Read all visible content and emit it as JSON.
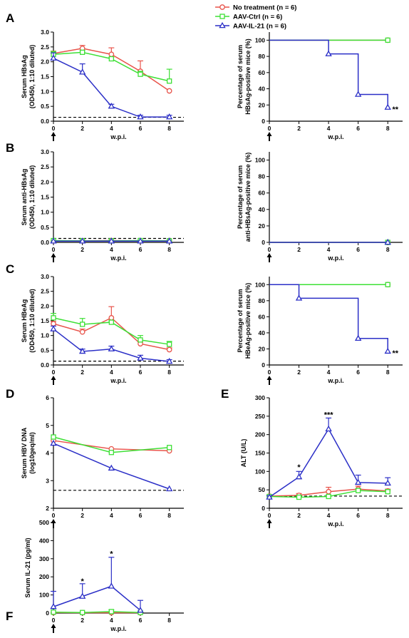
{
  "legend": {
    "no_treatment": "No treatment (n = 6)",
    "aav_ctrl": "AAV-Ctrl (n = 6)",
    "aav_il21": "AAV-IL-21 (n = 6)"
  },
  "colors": {
    "no_treatment": "#e8534a",
    "aav_ctrl": "#3ee036",
    "aav_il21": "#2b2fc7"
  },
  "chart_data": [
    {
      "id": "A_left",
      "panel_label": "A",
      "type": "line",
      "xlabel": "w.p.i.",
      "ylabel_lines": [
        "Serum HBsAg",
        "(OD450, 1:10 diluted)"
      ],
      "ylim": [
        0,
        3.0
      ],
      "yticks": [
        0,
        0.5,
        1.0,
        1.5,
        2.0,
        2.5,
        3.0
      ],
      "ytick_labels": [
        "0.0",
        "0.5",
        "1.0",
        "1.5",
        "2.0",
        "2.5",
        "3.0"
      ],
      "xlim": [
        0,
        9
      ],
      "xticks": [
        0,
        2,
        4,
        6,
        8
      ],
      "arrow_at_zero": true,
      "baseline": 0.13,
      "series": [
        {
          "name": "No treatment (n = 6)",
          "key": "no_treatment",
          "marker": "circle",
          "x": [
            0,
            2,
            4,
            6,
            8
          ],
          "y": [
            2.28,
            2.45,
            2.25,
            1.68,
            1.02
          ],
          "err": [
            0.08,
            0.1,
            0.22,
            0.35,
            0.0
          ]
        },
        {
          "name": "AAV-Ctrl (n = 6)",
          "key": "aav_ctrl",
          "marker": "square",
          "x": [
            0,
            2,
            4,
            6,
            8
          ],
          "y": [
            2.25,
            2.32,
            2.1,
            1.58,
            1.35
          ],
          "err": [
            0.1,
            0.05,
            0.05,
            0.1,
            0.4
          ]
        },
        {
          "name": "AAV-IL-21 (n = 6)",
          "key": "aav_il21",
          "marker": "triangle",
          "x": [
            0,
            2,
            4,
            6,
            8
          ],
          "y": [
            2.12,
            1.65,
            0.5,
            0.14,
            0.14
          ],
          "err": [
            0.18,
            0.28,
            0.07,
            0.06,
            0.06
          ]
        }
      ],
      "annotations": []
    },
    {
      "id": "A_right",
      "type": "step",
      "xlabel": "w.p.i.",
      "ylabel_lines": [
        "Percentage of serum",
        "HBsAg-positive mice (%)"
      ],
      "ylim": [
        0,
        110
      ],
      "yticks": [
        0,
        20,
        40,
        60,
        80,
        100
      ],
      "ytick_labels": [
        "0",
        "20",
        "40",
        "60",
        "80",
        "100"
      ],
      "xlim": [
        0,
        9
      ],
      "xticks": [
        0,
        2,
        4,
        6,
        8
      ],
      "arrow_at_zero": true,
      "series": [
        {
          "name": "No treatment (n = 6)",
          "key": "no_treatment",
          "marker": "circle",
          "x": [
            0,
            8
          ],
          "y": [
            100,
            100
          ]
        },
        {
          "name": "AAV-Ctrl (n = 6)",
          "key": "aav_ctrl",
          "marker": "square",
          "x": [
            0,
            8
          ],
          "y": [
            100,
            100
          ]
        },
        {
          "name": "AAV-IL-21 (n = 6)",
          "key": "aav_il21",
          "marker": "triangle",
          "x": [
            0,
            4,
            6,
            8
          ],
          "y": [
            100,
            83,
            33,
            17
          ]
        }
      ],
      "annotations": [
        {
          "text": "**",
          "x": 8.3,
          "y": 15
        }
      ]
    },
    {
      "id": "B_left",
      "panel_label": "B",
      "type": "line",
      "xlabel": "w.p.i.",
      "ylabel_lines": [
        "Serum anti-HBsAg",
        "(OD450, 1:10 diluted)"
      ],
      "ylim": [
        0,
        3.0
      ],
      "yticks": [
        0,
        0.5,
        1.0,
        1.5,
        2.0,
        2.5,
        3.0
      ],
      "ytick_labels": [
        "0.0",
        "0.5",
        "1.0",
        "1.5",
        "2.0",
        "2.5",
        "3.0"
      ],
      "xlim": [
        0,
        9
      ],
      "xticks": [
        0,
        2,
        4,
        6,
        8
      ],
      "arrow_at_zero": true,
      "baseline": 0.13,
      "series": [
        {
          "name": "No treatment (n = 6)",
          "key": "no_treatment",
          "marker": "circle",
          "x": [
            0,
            2,
            4,
            6,
            8
          ],
          "y": [
            0.05,
            0.05,
            0.06,
            0.05,
            0.05
          ],
          "err": [
            0,
            0,
            0,
            0,
            0
          ]
        },
        {
          "name": "AAV-Ctrl (n = 6)",
          "key": "aav_ctrl",
          "marker": "square",
          "x": [
            0,
            2,
            4,
            6,
            8
          ],
          "y": [
            0.06,
            0.05,
            0.05,
            0.06,
            0.05
          ],
          "err": [
            0,
            0,
            0,
            0,
            0
          ]
        },
        {
          "name": "AAV-IL-21 (n = 6)",
          "key": "aav_il21",
          "marker": "triangle",
          "x": [
            0,
            2,
            4,
            6,
            8
          ],
          "y": [
            0.04,
            0.04,
            0.04,
            0.04,
            0.04
          ],
          "err": [
            0,
            0,
            0,
            0,
            0
          ]
        }
      ],
      "annotations": []
    },
    {
      "id": "B_right",
      "type": "step",
      "xlabel": "w.p.i.",
      "ylabel_lines": [
        "Percentage of serum",
        "anti-HBsAg-positive mice (%)"
      ],
      "ylim": [
        0,
        110
      ],
      "yticks": [
        0,
        20,
        40,
        60,
        80,
        100
      ],
      "ytick_labels": [
        "0",
        "20",
        "40",
        "60",
        "80",
        "100"
      ],
      "xlim": [
        0,
        9
      ],
      "xticks": [
        0,
        2,
        4,
        6,
        8
      ],
      "arrow_at_zero": true,
      "series": [
        {
          "name": "No treatment (n = 6)",
          "key": "no_treatment",
          "marker": "circle",
          "x": [
            0,
            8
          ],
          "y": [
            0,
            0
          ]
        },
        {
          "name": "AAV-Ctrl (n = 6)",
          "key": "aav_ctrl",
          "marker": "square",
          "x": [
            0,
            8
          ],
          "y": [
            0,
            0
          ]
        },
        {
          "name": "AAV-IL-21 (n = 6)",
          "key": "aav_il21",
          "marker": "triangle",
          "x": [
            0,
            8
          ],
          "y": [
            0,
            0
          ]
        }
      ],
      "annotations": []
    },
    {
      "id": "C_left",
      "panel_label": "C",
      "type": "line",
      "xlabel": "w.p.i.",
      "ylabel_lines": [
        "Serum HBeAg",
        "(OD450, 1:10 diluted)"
      ],
      "ylim": [
        0,
        3.0
      ],
      "yticks": [
        0,
        0.5,
        1.0,
        1.5,
        2.0,
        2.5,
        3.0
      ],
      "ytick_labels": [
        "0.0",
        "0.5",
        "1.0",
        "1.5",
        "2.0",
        "2.5",
        "3.0"
      ],
      "xlim": [
        0,
        9
      ],
      "xticks": [
        0,
        2,
        4,
        6,
        8
      ],
      "arrow_at_zero": true,
      "baseline": 0.13,
      "series": [
        {
          "name": "No treatment (n = 6)",
          "key": "no_treatment",
          "marker": "circle",
          "x": [
            0,
            2,
            4,
            6,
            8
          ],
          "y": [
            1.4,
            1.12,
            1.6,
            0.72,
            0.52
          ],
          "err": [
            0.08,
            0.1,
            0.38,
            0.06,
            0.06
          ]
        },
        {
          "name": "AAV-Ctrl (n = 6)",
          "key": "aav_ctrl",
          "marker": "square",
          "x": [
            0,
            2,
            4,
            6,
            8
          ],
          "y": [
            1.6,
            1.38,
            1.45,
            0.85,
            0.7
          ],
          "err": [
            0.15,
            0.2,
            0.05,
            0.15,
            0.1
          ]
        },
        {
          "name": "AAV-IL-21 (n = 6)",
          "key": "aav_il21",
          "marker": "triangle",
          "x": [
            0,
            2,
            4,
            6,
            8
          ],
          "y": [
            1.22,
            0.46,
            0.54,
            0.23,
            0.12
          ],
          "err": [
            0.1,
            0.08,
            0.1,
            0.1,
            0.06
          ]
        }
      ],
      "annotations": []
    },
    {
      "id": "C_right",
      "type": "step",
      "xlabel": "w.p.i.",
      "ylabel_lines": [
        "Percentage of serum",
        "HBeAg-positive mice (%)"
      ],
      "ylim": [
        0,
        110
      ],
      "yticks": [
        0,
        20,
        40,
        60,
        80,
        100
      ],
      "ytick_labels": [
        "0",
        "20",
        "40",
        "60",
        "80",
        "100"
      ],
      "xlim": [
        0,
        9
      ],
      "xticks": [
        0,
        2,
        4,
        6,
        8
      ],
      "arrow_at_zero": true,
      "series": [
        {
          "name": "No treatment (n = 6)",
          "key": "no_treatment",
          "marker": "circle",
          "x": [
            0,
            8
          ],
          "y": [
            100,
            100
          ]
        },
        {
          "name": "AAV-Ctrl (n = 6)",
          "key": "aav_ctrl",
          "marker": "square",
          "x": [
            0,
            8
          ],
          "y": [
            100,
            100
          ]
        },
        {
          "name": "AAV-IL-21 (n = 6)",
          "key": "aav_il21",
          "marker": "triangle",
          "x": [
            0,
            2,
            6,
            8
          ],
          "y": [
            100,
            83,
            33,
            17
          ]
        }
      ],
      "annotations": [
        {
          "text": "**",
          "x": 8.3,
          "y": 15
        }
      ]
    },
    {
      "id": "D",
      "panel_label": "D",
      "type": "line",
      "xlabel": "",
      "ylabel_lines": [
        "Serum HBV DNA",
        "(log10geq/ml)"
      ],
      "ylim": [
        2,
        6
      ],
      "yticks": [
        2,
        3,
        4,
        5,
        6
      ],
      "ytick_labels": [
        "2",
        "3",
        "4",
        "5",
        "6"
      ],
      "xlim": [
        0,
        9
      ],
      "xticks": [
        0,
        2,
        4,
        6,
        8
      ],
      "arrow_at_zero": true,
      "baseline": 2.65,
      "series": [
        {
          "name": "No treatment (n = 6)",
          "key": "no_treatment",
          "marker": "circle",
          "x": [
            0,
            4,
            8
          ],
          "y": [
            4.45,
            4.15,
            4.08
          ],
          "err": [
            0,
            0,
            0
          ]
        },
        {
          "name": "AAV-Ctrl (n = 6)",
          "key": "aav_ctrl",
          "marker": "square",
          "x": [
            0,
            4,
            8
          ],
          "y": [
            4.58,
            4.02,
            4.2
          ],
          "err": [
            0,
            0,
            0
          ]
        },
        {
          "name": "AAV-IL-21 (n = 6)",
          "key": "aav_il21",
          "marker": "triangle",
          "x": [
            0,
            4,
            8
          ],
          "y": [
            4.35,
            3.45,
            2.7
          ],
          "err": [
            0,
            0,
            0
          ]
        }
      ],
      "annotations": []
    },
    {
      "id": "E",
      "panel_label": "E",
      "type": "line",
      "xlabel": "w.p.i.",
      "ylabel_lines": [
        "ALT (U/L)"
      ],
      "ylim": [
        0,
        300
      ],
      "yticks": [
        0,
        50,
        100,
        150,
        200,
        250,
        300
      ],
      "ytick_labels": [
        "0",
        "50",
        "100",
        "150",
        "200",
        "250",
        "300"
      ],
      "xlim": [
        0,
        9
      ],
      "xticks": [
        0,
        2,
        4,
        6,
        8
      ],
      "arrow_at_zero": true,
      "baseline": 33,
      "series": [
        {
          "name": "No treatment (n = 6)",
          "key": "no_treatment",
          "marker": "circle",
          "x": [
            0,
            2,
            4,
            6,
            8
          ],
          "y": [
            33,
            35,
            45,
            52,
            47
          ],
          "err": [
            3,
            5,
            12,
            8,
            5
          ]
        },
        {
          "name": "AAV-Ctrl (n = 6)",
          "key": "aav_ctrl",
          "marker": "square",
          "x": [
            0,
            2,
            4,
            6,
            8
          ],
          "y": [
            32,
            30,
            32,
            48,
            45
          ],
          "err": [
            3,
            3,
            3,
            5,
            5
          ]
        },
        {
          "name": "AAV-IL-21 (n = 6)",
          "key": "aav_il21",
          "marker": "triangle",
          "x": [
            0,
            2,
            4,
            6,
            8
          ],
          "y": [
            30,
            85,
            215,
            70,
            68
          ],
          "err": [
            4,
            15,
            30,
            20,
            15
          ]
        }
      ],
      "annotations": [
        {
          "text": "*",
          "x": 2,
          "y": 112
        },
        {
          "text": "***",
          "x": 4,
          "y": 255
        }
      ]
    },
    {
      "id": "F",
      "panel_label": "F",
      "type": "line",
      "xlabel": "w.p.i.",
      "ylabel_lines": [
        "Serum IL-21 (pg/ml)"
      ],
      "ylim": [
        0,
        500
      ],
      "yticks": [
        0,
        100,
        200,
        300,
        400,
        500
      ],
      "ytick_labels": [
        "0",
        "100",
        "200",
        "300",
        "400",
        "500"
      ],
      "xlim": [
        0,
        9
      ],
      "xticks": [
        0,
        2,
        4,
        6,
        8
      ],
      "arrow_at_zero": true,
      "series": [
        {
          "name": "No treatment (n = 6)",
          "key": "no_treatment",
          "marker": "circle",
          "x": [
            0,
            2,
            4,
            6
          ],
          "y": [
            3,
            2,
            2,
            2
          ],
          "err": [
            0,
            0,
            0,
            0
          ]
        },
        {
          "name": "AAV-Ctrl (n = 6)",
          "key": "aav_ctrl",
          "marker": "square",
          "x": [
            0,
            2,
            4,
            6
          ],
          "y": [
            5,
            3,
            8,
            3
          ],
          "err": [
            0,
            0,
            10,
            0
          ]
        },
        {
          "name": "AAV-IL-21 (n = 6)",
          "key": "aav_il21",
          "marker": "triangle",
          "x": [
            0,
            2,
            4,
            6
          ],
          "y": [
            35,
            92,
            148,
            15
          ],
          "err": [
            85,
            70,
            160,
            55
          ]
        }
      ],
      "annotations": [
        {
          "text": "*",
          "x": 2,
          "y": 178
        },
        {
          "text": "*",
          "x": 4,
          "y": 328
        }
      ]
    }
  ]
}
